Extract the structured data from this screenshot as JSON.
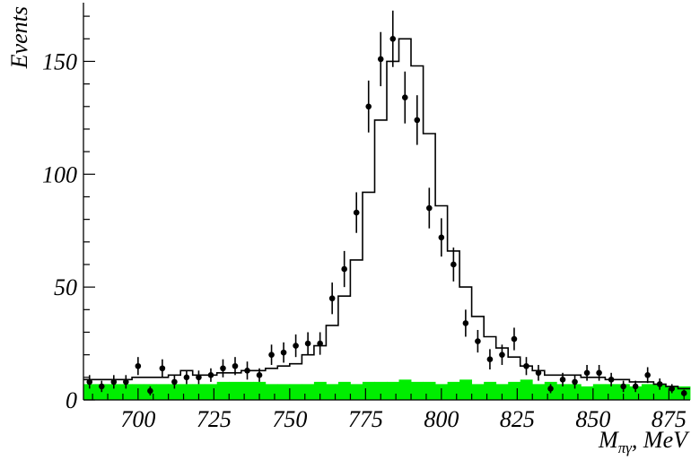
{
  "chart_data": {
    "type": "histogram",
    "title": "",
    "xlabel": {
      "main": "M",
      "subscript": "πγ",
      "suffix": ", MeV"
    },
    "ylabel": "Events",
    "xlim": [
      682,
      882
    ],
    "ylim": [
      0,
      176
    ],
    "xticks": [
      700,
      725,
      750,
      775,
      800,
      825,
      850,
      875
    ],
    "yticks": [
      0,
      50,
      100,
      150
    ],
    "bin_width": 4,
    "bin_edges_start": 682,
    "legend": "none",
    "grid": false,
    "colors": {
      "background_fill": "#00ee00",
      "axes": "#000000",
      "data": "#000000"
    },
    "series": [
      {
        "kind": "data_points_with_errors",
        "x": [
          684,
          688,
          692,
          696,
          700,
          704,
          708,
          712,
          716,
          720,
          724,
          728,
          732,
          736,
          740,
          744,
          748,
          752,
          756,
          760,
          764,
          768,
          772,
          776,
          780,
          784,
          788,
          792,
          796,
          800,
          804,
          808,
          812,
          816,
          820,
          824,
          828,
          832,
          836,
          840,
          844,
          848,
          852,
          856,
          860,
          864,
          868,
          872,
          876,
          880
        ],
        "y": [
          8,
          6,
          8,
          8,
          15,
          4,
          14,
          8,
          10,
          10,
          11,
          14,
          15,
          13,
          11,
          20,
          21,
          24,
          25,
          25,
          45,
          58,
          83,
          130,
          151,
          160,
          134,
          124,
          85,
          72,
          60,
          34,
          26,
          18,
          20,
          27,
          15,
          12,
          5,
          9,
          8,
          12,
          12,
          9,
          6,
          6,
          11,
          7,
          5,
          3
        ],
        "yerr": [
          3,
          2.5,
          3,
          3,
          4,
          2,
          4,
          3,
          3,
          3,
          3,
          4,
          4,
          4,
          3,
          4.5,
          4.5,
          5,
          5,
          5,
          7,
          8,
          9,
          11.5,
          12,
          12.5,
          11.5,
          11,
          9,
          8.5,
          7.5,
          6,
          5,
          4.5,
          4.5,
          5,
          4,
          3.5,
          2,
          3,
          3,
          3.5,
          3.5,
          3,
          2.5,
          2.5,
          3.5,
          2.5,
          2,
          1.5
        ]
      },
      {
        "kind": "mc_histogram_step",
        "values": [
          9,
          9,
          9,
          9,
          10,
          10,
          10,
          11,
          13,
          11,
          11,
          12,
          12,
          13,
          13,
          14,
          15,
          16,
          20,
          24,
          33,
          46,
          62,
          92,
          124,
          150,
          160,
          148,
          118,
          86,
          66,
          50,
          37,
          28,
          23,
          19,
          15,
          13,
          11,
          11,
          11,
          10,
          10,
          9,
          9,
          8,
          8,
          7,
          6,
          5
        ]
      },
      {
        "kind": "background_filled",
        "values": [
          7,
          7,
          7,
          7,
          7,
          7,
          7,
          7,
          7,
          7,
          7,
          8,
          8,
          8,
          8,
          7,
          7,
          7,
          7,
          8,
          7,
          8,
          7,
          8,
          8,
          8,
          9,
          8,
          8,
          7,
          8,
          9,
          7,
          8,
          7,
          8,
          9,
          7,
          8,
          7,
          7,
          6,
          7,
          7,
          7,
          6,
          7,
          7,
          6,
          6
        ]
      }
    ]
  }
}
